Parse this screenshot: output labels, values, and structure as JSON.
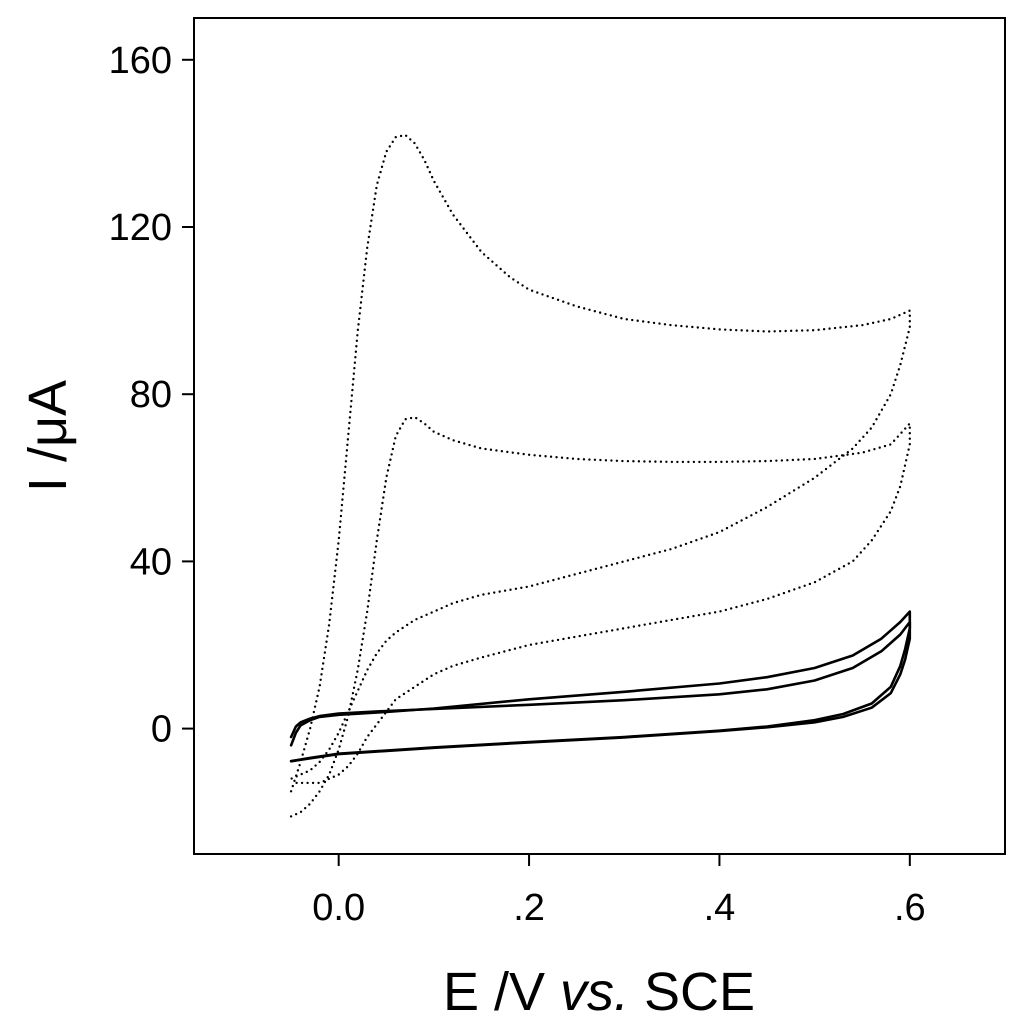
{
  "chart_data": {
    "type": "line",
    "title": "",
    "xlabel_parts": [
      "E /V ",
      "vs.",
      " SCE"
    ],
    "ylabel": "I /μA",
    "xlim": [
      -0.152,
      0.7
    ],
    "ylim": [
      -30,
      170
    ],
    "xticks": [
      0.0,
      0.2,
      0.4,
      0.6
    ],
    "xtick_labels": [
      "0.0",
      ".2",
      ".4",
      ".6"
    ],
    "yticks": [
      0,
      40,
      80,
      120,
      160
    ],
    "ytick_labels": [
      "0",
      "40",
      "80",
      "120",
      "160"
    ],
    "grid": false,
    "series": [
      {
        "style": "dotted",
        "x": [
          -0.05,
          -0.04,
          -0.03,
          -0.02,
          -0.01,
          0.0,
          0.01,
          0.02,
          0.03,
          0.04,
          0.05,
          0.06,
          0.07,
          0.08,
          0.09,
          0.1,
          0.12,
          0.15,
          0.18,
          0.2,
          0.25,
          0.3,
          0.35,
          0.4,
          0.45,
          0.5,
          0.55,
          0.58,
          0.6,
          0.6,
          0.59,
          0.58,
          0.56,
          0.54,
          0.5,
          0.45,
          0.4,
          0.35,
          0.3,
          0.25,
          0.2,
          0.15,
          0.12,
          0.1,
          0.08,
          0.06,
          0.05,
          0.04,
          0.03,
          0.02,
          0.01,
          0.0,
          -0.01,
          -0.02,
          -0.03,
          -0.04,
          -0.05
        ],
        "y": [
          -15,
          -8,
          0,
          10,
          25,
          45,
          70,
          95,
          115,
          130,
          138,
          141.5,
          142,
          140,
          136,
          131,
          123,
          114,
          108,
          105,
          101,
          98,
          96.5,
          95.5,
          95,
          95.3,
          96.5,
          98,
          100,
          96,
          87,
          80,
          72,
          67,
          60,
          53,
          47,
          43,
          40,
          37,
          34,
          32,
          30,
          28,
          26,
          23,
          21,
          18,
          14,
          9,
          4,
          -1,
          -5,
          -8,
          -10,
          -11,
          -12
        ]
      },
      {
        "style": "dotted",
        "x": [
          -0.05,
          -0.04,
          -0.03,
          -0.02,
          -0.01,
          0.0,
          0.01,
          0.02,
          0.03,
          0.04,
          0.05,
          0.06,
          0.07,
          0.08,
          0.09,
          0.1,
          0.12,
          0.15,
          0.2,
          0.25,
          0.3,
          0.35,
          0.4,
          0.45,
          0.5,
          0.55,
          0.58,
          0.6,
          0.6,
          0.59,
          0.58,
          0.56,
          0.54,
          0.5,
          0.45,
          0.4,
          0.35,
          0.3,
          0.25,
          0.2,
          0.15,
          0.12,
          0.1,
          0.08,
          0.06,
          0.05,
          0.04,
          0.03,
          0.02,
          0.01,
          0.0,
          -0.01,
          -0.02,
          -0.03,
          -0.04,
          -0.05
        ],
        "y": [
          -21,
          -20,
          -18,
          -15,
          -11,
          -5,
          3,
          14,
          28,
          45,
          60,
          70,
          74,
          74.5,
          73,
          71,
          69,
          67,
          65.5,
          64.5,
          64,
          63.8,
          63.8,
          64,
          64.5,
          66,
          68,
          73,
          68,
          58,
          52,
          45,
          40,
          35,
          31,
          28,
          26,
          24,
          22,
          20,
          17,
          15,
          13,
          10,
          7,
          4,
          1,
          -2,
          -6,
          -9,
          -11,
          -12,
          -13,
          -13,
          -13,
          -13
        ]
      },
      {
        "style": "solid",
        "x": [
          -0.05,
          -0.045,
          -0.04,
          -0.03,
          -0.02,
          0.0,
          0.05,
          0.1,
          0.2,
          0.3,
          0.4,
          0.45,
          0.5,
          0.54,
          0.57,
          0.59,
          0.6,
          0.6,
          0.595,
          0.59,
          0.58,
          0.56,
          0.53,
          0.5,
          0.45,
          0.4,
          0.3,
          0.2,
          0.1,
          0.0,
          -0.03,
          -0.05
        ],
        "y": [
          -4,
          -1,
          0.8,
          2,
          2.8,
          3.3,
          4,
          4.8,
          7,
          8.8,
          10.8,
          12.3,
          14.5,
          17.5,
          21.5,
          25.5,
          28,
          24,
          19,
          15,
          10,
          6,
          3.5,
          2,
          0.5,
          -0.5,
          -2,
          -3.2,
          -4.5,
          -6,
          -7,
          -7.8
        ]
      },
      {
        "style": "solid",
        "x": [
          -0.05,
          -0.045,
          -0.04,
          -0.03,
          -0.02,
          0.0,
          0.05,
          0.1,
          0.2,
          0.3,
          0.4,
          0.45,
          0.5,
          0.54,
          0.57,
          0.59,
          0.6,
          0.6,
          0.595,
          0.59,
          0.58,
          0.56,
          0.53,
          0.5,
          0.45,
          0.4,
          0.3,
          0.2,
          0.1,
          0.0,
          -0.03,
          -0.05
        ],
        "y": [
          -2,
          0.5,
          1.5,
          2.4,
          3,
          3.6,
          4.2,
          4.7,
          5.7,
          6.8,
          8.2,
          9.4,
          11.5,
          14.5,
          18.5,
          22.5,
          25.5,
          21.5,
          16.5,
          13,
          8.5,
          5,
          2.8,
          1.5,
          0.3,
          -0.6,
          -2.1,
          -3.3,
          -4.6,
          -6.1,
          -7.1,
          -7.8
        ]
      }
    ]
  }
}
